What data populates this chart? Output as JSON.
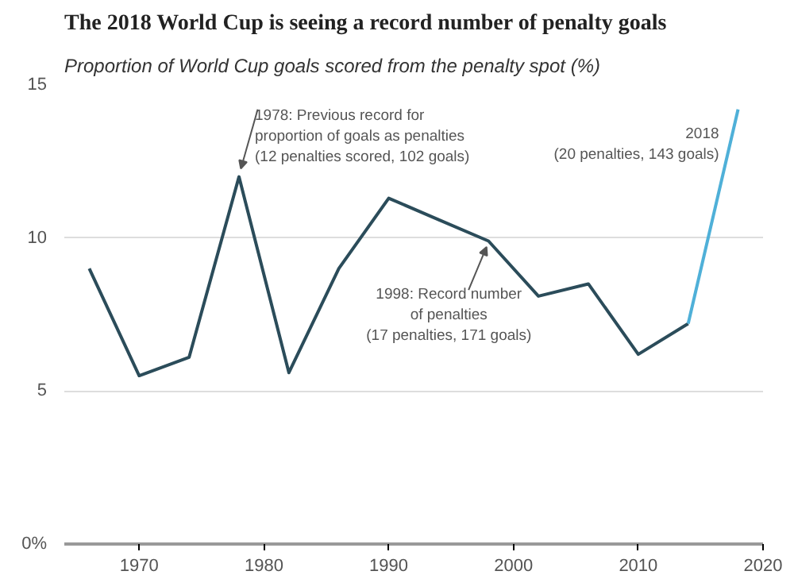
{
  "chart_data": {
    "type": "line",
    "title": "The 2018 World Cup is seeing a record number of penalty goals",
    "subtitle": "Proportion of World Cup goals scored from the penalty spot (%)",
    "series": [
      {
        "color": "#2b4c5a",
        "x": [
          1966,
          1970,
          1974,
          1978,
          1982,
          1986,
          1990,
          1994,
          1998,
          2002,
          2006,
          2010,
          2014
        ],
        "values": [
          9.0,
          5.5,
          6.1,
          12.0,
          5.6,
          9.0,
          11.3,
          10.6,
          9.9,
          8.1,
          8.5,
          6.2,
          7.2
        ]
      },
      {
        "color": "#4fb0d8",
        "x": [
          2014,
          2018
        ],
        "values": [
          7.2,
          14.2
        ]
      }
    ],
    "xlim": [
      1964,
      2020
    ],
    "xticks": [
      1970,
      1980,
      1990,
      2000,
      2010,
      2020
    ],
    "ylim": [
      0,
      15
    ],
    "yticks": [
      {
        "value": 0,
        "label": "0%"
      },
      5,
      10,
      15
    ],
    "grid": "y",
    "marker": "none",
    "line_style": "solid",
    "annotations": [
      {
        "text": "1978: Previous record for\nproportion of goals as penalties\n(12 penalties scored, 102 goals)",
        "x": 1978,
        "y": 12.0
      },
      {
        "text": "1998: Record number\nof penalties\n(17 penalties, 171 goals)",
        "x": 1998,
        "y": 9.9
      },
      {
        "text": "2018\n(20 penalties, 143 goals)",
        "x": 2018,
        "y": 14.2
      }
    ]
  }
}
